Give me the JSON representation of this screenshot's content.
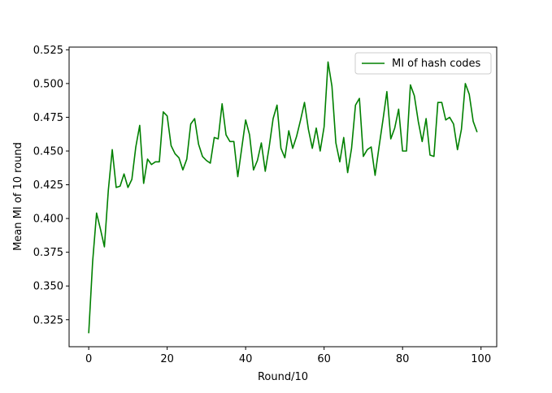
{
  "chart_data": {
    "type": "line",
    "title": "",
    "xlabel": "Round/10",
    "ylabel": "Mean MI of 10 round",
    "xlim": [
      -5,
      104
    ],
    "ylim": [
      0.305,
      0.527
    ],
    "x_ticks": [
      0,
      20,
      40,
      60,
      80,
      100
    ],
    "y_ticks": [
      0.325,
      0.35,
      0.375,
      0.4,
      0.425,
      0.45,
      0.475,
      0.5,
      0.525
    ],
    "x_tick_labels": [
      "0",
      "20",
      "40",
      "60",
      "80",
      "100"
    ],
    "y_tick_labels": [
      "0.325",
      "0.350",
      "0.375",
      "0.400",
      "0.425",
      "0.450",
      "0.475",
      "0.500",
      "0.525"
    ],
    "grid": false,
    "legend_position": "top-right",
    "series": [
      {
        "name": "MI of hash codes",
        "color": "#008000",
        "x": [
          0,
          1,
          2,
          3,
          4,
          5,
          6,
          7,
          8,
          9,
          10,
          11,
          12,
          13,
          14,
          15,
          16,
          17,
          18,
          19,
          20,
          21,
          22,
          23,
          24,
          25,
          26,
          27,
          28,
          29,
          30,
          31,
          32,
          33,
          34,
          35,
          36,
          37,
          38,
          39,
          40,
          41,
          42,
          43,
          44,
          45,
          46,
          47,
          48,
          49,
          50,
          51,
          52,
          53,
          54,
          55,
          56,
          57,
          58,
          59,
          60,
          61,
          62,
          63,
          64,
          65,
          66,
          67,
          68,
          69,
          70,
          71,
          72,
          73,
          74,
          75,
          76,
          77,
          78,
          79,
          80,
          81,
          82,
          83,
          84,
          85,
          86,
          87,
          88,
          89,
          90,
          91,
          92,
          93,
          94,
          95,
          96,
          97,
          98,
          99
        ],
        "values": [
          0.315,
          0.368,
          0.404,
          0.392,
          0.379,
          0.421,
          0.451,
          0.423,
          0.424,
          0.433,
          0.423,
          0.429,
          0.453,
          0.469,
          0.426,
          0.444,
          0.44,
          0.442,
          0.442,
          0.479,
          0.476,
          0.454,
          0.448,
          0.445,
          0.436,
          0.444,
          0.47,
          0.474,
          0.455,
          0.446,
          0.443,
          0.441,
          0.46,
          0.459,
          0.485,
          0.462,
          0.457,
          0.457,
          0.431,
          0.452,
          0.473,
          0.462,
          0.436,
          0.443,
          0.456,
          0.435,
          0.453,
          0.474,
          0.484,
          0.452,
          0.445,
          0.465,
          0.452,
          0.461,
          0.473,
          0.486,
          0.466,
          0.452,
          0.467,
          0.45,
          0.468,
          0.516,
          0.498,
          0.456,
          0.442,
          0.46,
          0.434,
          0.452,
          0.484,
          0.489,
          0.446,
          0.451,
          0.453,
          0.432,
          0.453,
          0.473,
          0.494,
          0.459,
          0.467,
          0.481,
          0.45,
          0.45,
          0.499,
          0.491,
          0.472,
          0.457,
          0.474,
          0.447,
          0.446,
          0.486,
          0.486,
          0.473,
          0.475,
          0.47,
          0.451,
          0.466,
          0.5,
          0.492,
          0.472,
          0.464
        ]
      }
    ]
  }
}
